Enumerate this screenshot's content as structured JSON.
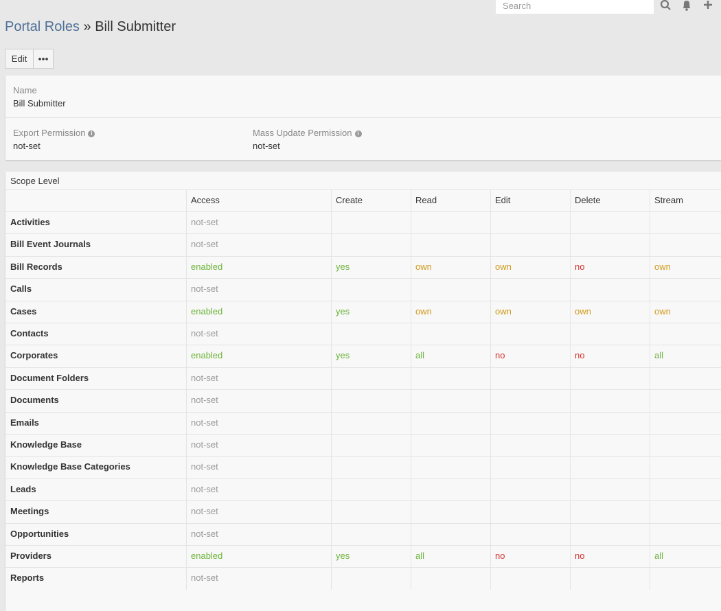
{
  "header": {
    "search_placeholder": "Search",
    "breadcrumb": {
      "parent": "Portal Roles",
      "separator": "»",
      "current": "Bill Submitter"
    }
  },
  "buttons": {
    "edit": "Edit"
  },
  "details": {
    "name_label": "Name",
    "name_value": "Bill Submitter",
    "export_label": "Export Permission",
    "export_value": "not-set",
    "mass_update_label": "Mass Update Permission",
    "mass_update_value": "not-set"
  },
  "table": {
    "title": "Scope Level",
    "tones": {
      "green": "#6cb43a",
      "orange": "#d19a1a",
      "red": "#d8322d",
      "gray": "#999999"
    },
    "columns": [
      "Access",
      "Create",
      "Read",
      "Edit",
      "Delete",
      "Stream"
    ],
    "rows": [
      {
        "name": "Activities",
        "cells": [
          {
            "text": "not-set",
            "tone": "gray"
          }
        ]
      },
      {
        "name": "Bill Event Journals",
        "cells": [
          {
            "text": "not-set",
            "tone": "gray"
          }
        ]
      },
      {
        "name": "Bill Records",
        "cells": [
          {
            "text": "enabled",
            "tone": "green"
          },
          {
            "text": "yes",
            "tone": "green"
          },
          {
            "text": "own",
            "tone": "orange"
          },
          {
            "text": "own",
            "tone": "orange"
          },
          {
            "text": "no",
            "tone": "red"
          },
          {
            "text": "own",
            "tone": "orange"
          }
        ]
      },
      {
        "name": "Calls",
        "cells": [
          {
            "text": "not-set",
            "tone": "gray"
          }
        ]
      },
      {
        "name": "Cases",
        "cells": [
          {
            "text": "enabled",
            "tone": "green"
          },
          {
            "text": "yes",
            "tone": "green"
          },
          {
            "text": "own",
            "tone": "orange"
          },
          {
            "text": "own",
            "tone": "orange"
          },
          {
            "text": "own",
            "tone": "orange"
          },
          {
            "text": "own",
            "tone": "orange"
          }
        ]
      },
      {
        "name": "Contacts",
        "cells": [
          {
            "text": "not-set",
            "tone": "gray"
          }
        ]
      },
      {
        "name": "Corporates",
        "cells": [
          {
            "text": "enabled",
            "tone": "green"
          },
          {
            "text": "yes",
            "tone": "green"
          },
          {
            "text": "all",
            "tone": "green"
          },
          {
            "text": "no",
            "tone": "red"
          },
          {
            "text": "no",
            "tone": "red"
          },
          {
            "text": "all",
            "tone": "green"
          }
        ]
      },
      {
        "name": "Document Folders",
        "cells": [
          {
            "text": "not-set",
            "tone": "gray"
          }
        ]
      },
      {
        "name": "Documents",
        "cells": [
          {
            "text": "not-set",
            "tone": "gray"
          }
        ]
      },
      {
        "name": "Emails",
        "cells": [
          {
            "text": "not-set",
            "tone": "gray"
          }
        ]
      },
      {
        "name": "Knowledge Base",
        "cells": [
          {
            "text": "not-set",
            "tone": "gray"
          }
        ]
      },
      {
        "name": "Knowledge Base Categories",
        "cells": [
          {
            "text": "not-set",
            "tone": "gray"
          }
        ]
      },
      {
        "name": "Leads",
        "cells": [
          {
            "text": "not-set",
            "tone": "gray"
          }
        ]
      },
      {
        "name": "Meetings",
        "cells": [
          {
            "text": "not-set",
            "tone": "gray"
          }
        ]
      },
      {
        "name": "Opportunities",
        "cells": [
          {
            "text": "not-set",
            "tone": "gray"
          }
        ]
      },
      {
        "name": "Providers",
        "cells": [
          {
            "text": "enabled",
            "tone": "green"
          },
          {
            "text": "yes",
            "tone": "green"
          },
          {
            "text": "all",
            "tone": "green"
          },
          {
            "text": "no",
            "tone": "red"
          },
          {
            "text": "no",
            "tone": "red"
          },
          {
            "text": "all",
            "tone": "green"
          }
        ]
      },
      {
        "name": "Reports",
        "cells": [
          {
            "text": "not-set",
            "tone": "gray"
          }
        ]
      }
    ]
  }
}
